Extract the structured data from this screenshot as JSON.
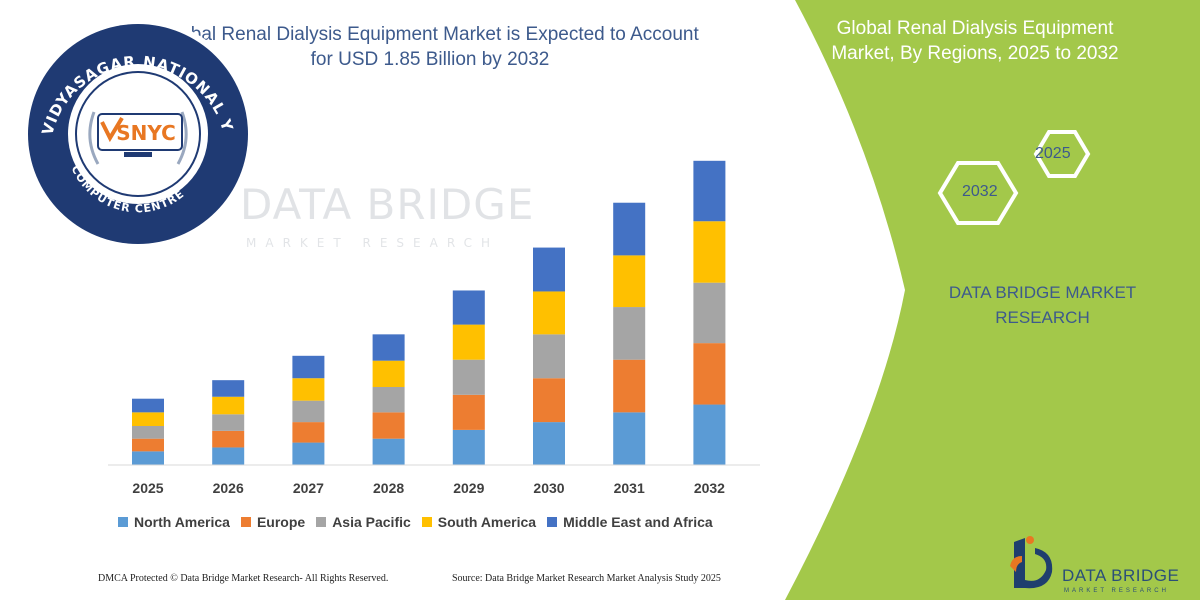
{
  "header": {
    "title_line1": "Global Renal Dialysis Equipment Market is Expected to Account",
    "title_line2": "for USD 1.85 Billion by 2032"
  },
  "logo": {
    "ring_text": "VIDYASAGAR NATIONAL YOUTH",
    "bottom_text": "COMPUTER CENTRE",
    "badge": "SNYC"
  },
  "watermark": {
    "main": "DATA BRIDGE",
    "sub": "MARKET RESEARCH"
  },
  "side_panel": {
    "title_line1": "Global Renal Dialysis Equipment",
    "title_line2": "Market, By Regions, 2025 to 2032",
    "hex_start": "2025",
    "hex_end": "2032",
    "brand_line1": "DATA BRIDGE MARKET",
    "brand_line2": "RESEARCH",
    "color": "#a3c84a"
  },
  "brand": {
    "name": "DATA BRIDGE",
    "sub": "MARKET RESEARCH"
  },
  "footer": {
    "left": "DMCA Protected © Data Bridge Market Research- All Rights Reserved.",
    "right": "Source: Data Bridge Market Research Market Analysis Study 2025"
  },
  "chart_data": {
    "type": "bar",
    "stacked": true,
    "categories": [
      "2025",
      "2026",
      "2027",
      "2028",
      "2029",
      "2030",
      "2031",
      "2032"
    ],
    "series": [
      {
        "name": "North America",
        "color": "#5b9bd5",
        "values": [
          14,
          18,
          23,
          27,
          36,
          44,
          54,
          62
        ]
      },
      {
        "name": "Europe",
        "color": "#ed7d31",
        "values": [
          13,
          17,
          21,
          27,
          36,
          45,
          54,
          63
        ]
      },
      {
        "name": "Asia Pacific",
        "color": "#a5a5a5",
        "values": [
          13,
          17,
          22,
          26,
          36,
          45,
          54,
          62
        ]
      },
      {
        "name": "South America",
        "color": "#ffc000",
        "values": [
          14,
          18,
          23,
          27,
          36,
          44,
          53,
          63
        ]
      },
      {
        "name": "Middle East and Africa",
        "color": "#4472c4",
        "values": [
          14,
          17,
          23,
          27,
          35,
          45,
          54,
          62
        ]
      }
    ],
    "ylim": [
      0,
      320
    ],
    "grid": false,
    "legend_position": "bottom"
  }
}
